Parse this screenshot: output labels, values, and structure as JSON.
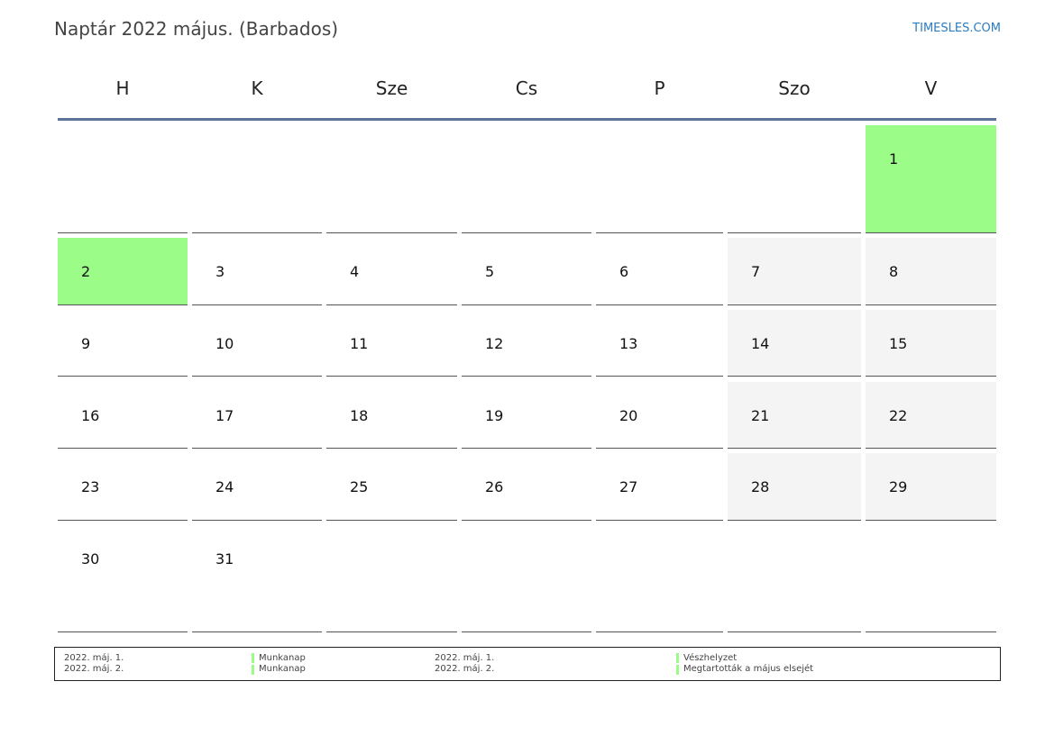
{
  "header": {
    "title": "Naptár 2022 május. (Barbados)",
    "site": "TIMESLES.COM"
  },
  "weekdays": [
    "H",
    "K",
    "Sze",
    "Cs",
    "P",
    "Szo",
    "V"
  ],
  "weeks": [
    [
      "",
      "",
      "",
      "",
      "",
      "",
      "1"
    ],
    [
      "2",
      "3",
      "4",
      "5",
      "6",
      "7",
      "8"
    ],
    [
      "9",
      "10",
      "11",
      "12",
      "13",
      "14",
      "15"
    ],
    [
      "16",
      "17",
      "18",
      "19",
      "20",
      "21",
      "22"
    ],
    [
      "23",
      "24",
      "25",
      "26",
      "27",
      "28",
      "29"
    ],
    [
      "30",
      "31",
      "",
      "",
      "",
      "",
      ""
    ]
  ],
  "holiday_days": [
    "1",
    "2"
  ],
  "colors": {
    "holiday": "#9cfc88",
    "weekend": "#f4f4f4",
    "header_line": "#5a7396",
    "link": "#2b7bbf"
  },
  "legend": {
    "left": [
      {
        "date": "2022. máj. 1.",
        "type": "Munkanap"
      },
      {
        "date": "2022. máj. 2.",
        "type": "Munkanap"
      }
    ],
    "right": [
      {
        "date": "2022. máj. 1.",
        "name": "Vészhelyzet"
      },
      {
        "date": "2022. máj. 2.",
        "name": "Megtartották a május elsejét"
      }
    ]
  }
}
